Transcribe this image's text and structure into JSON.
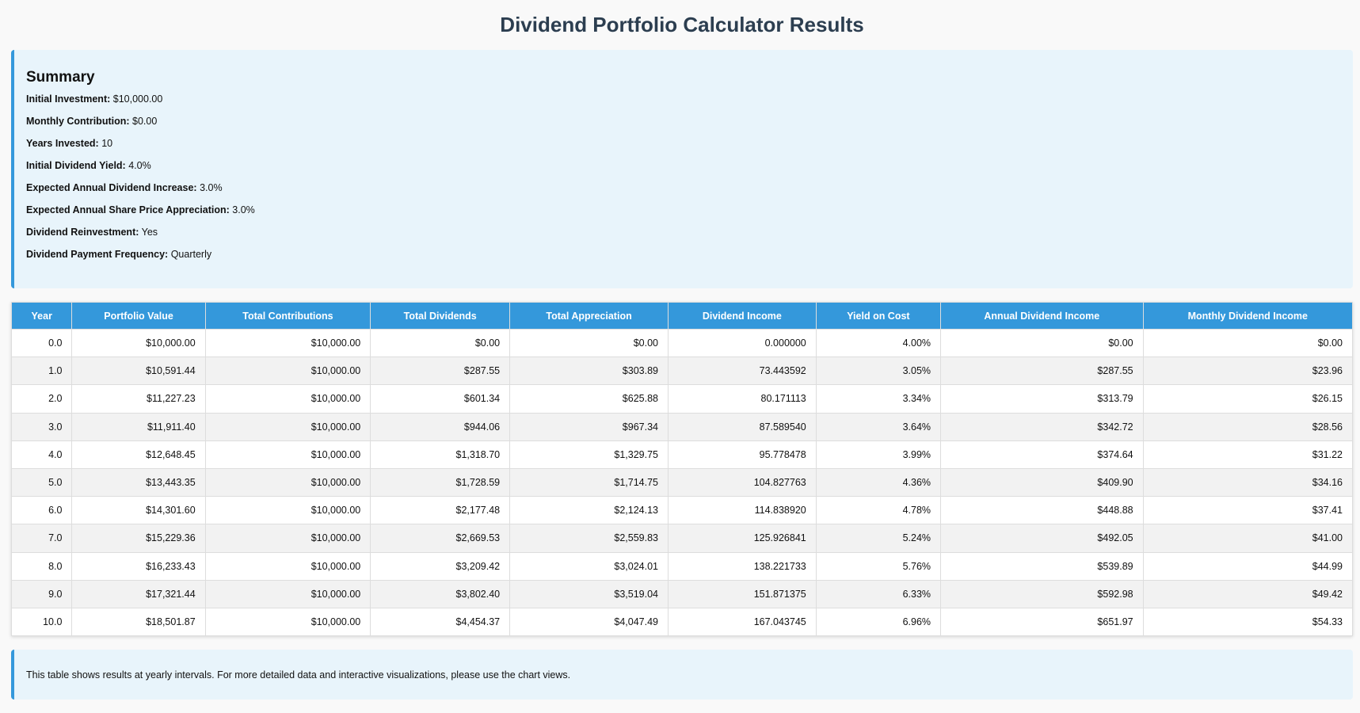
{
  "title": "Dividend Portfolio Calculator Results",
  "summary": {
    "heading": "Summary",
    "items": [
      {
        "label": "Initial Investment:",
        "value": "$10,000.00"
      },
      {
        "label": "Monthly Contribution:",
        "value": "$0.00"
      },
      {
        "label": "Years Invested:",
        "value": "10"
      },
      {
        "label": "Initial Dividend Yield:",
        "value": "4.0%"
      },
      {
        "label": "Expected Annual Dividend Increase:",
        "value": "3.0%"
      },
      {
        "label": "Expected Annual Share Price Appreciation:",
        "value": "3.0%"
      },
      {
        "label": "Dividend Reinvestment:",
        "value": "Yes"
      },
      {
        "label": "Dividend Payment Frequency:",
        "value": "Quarterly"
      }
    ]
  },
  "table": {
    "columns": [
      "Year",
      "Portfolio Value",
      "Total Contributions",
      "Total Dividends",
      "Total Appreciation",
      "Dividend Income",
      "Yield on Cost",
      "Annual Dividend Income",
      "Monthly Dividend Income"
    ],
    "rows": [
      [
        "0.0",
        "$10,000.00",
        "$10,000.00",
        "$0.00",
        "$0.00",
        "0.000000",
        "4.00%",
        "$0.00",
        "$0.00"
      ],
      [
        "1.0",
        "$10,591.44",
        "$10,000.00",
        "$287.55",
        "$303.89",
        "73.443592",
        "3.05%",
        "$287.55",
        "$23.96"
      ],
      [
        "2.0",
        "$11,227.23",
        "$10,000.00",
        "$601.34",
        "$625.88",
        "80.171113",
        "3.34%",
        "$313.79",
        "$26.15"
      ],
      [
        "3.0",
        "$11,911.40",
        "$10,000.00",
        "$944.06",
        "$967.34",
        "87.589540",
        "3.64%",
        "$342.72",
        "$28.56"
      ],
      [
        "4.0",
        "$12,648.45",
        "$10,000.00",
        "$1,318.70",
        "$1,329.75",
        "95.778478",
        "3.99%",
        "$374.64",
        "$31.22"
      ],
      [
        "5.0",
        "$13,443.35",
        "$10,000.00",
        "$1,728.59",
        "$1,714.75",
        "104.827763",
        "4.36%",
        "$409.90",
        "$34.16"
      ],
      [
        "6.0",
        "$14,301.60",
        "$10,000.00",
        "$2,177.48",
        "$2,124.13",
        "114.838920",
        "4.78%",
        "$448.88",
        "$37.41"
      ],
      [
        "7.0",
        "$15,229.36",
        "$10,000.00",
        "$2,669.53",
        "$2,559.83",
        "125.926841",
        "5.24%",
        "$492.05",
        "$41.00"
      ],
      [
        "8.0",
        "$16,233.43",
        "$10,000.00",
        "$3,209.42",
        "$3,024.01",
        "138.221733",
        "5.76%",
        "$539.89",
        "$44.99"
      ],
      [
        "9.0",
        "$17,321.44",
        "$10,000.00",
        "$3,802.40",
        "$3,519.04",
        "151.871375",
        "6.33%",
        "$592.98",
        "$49.42"
      ],
      [
        "10.0",
        "$18,501.87",
        "$10,000.00",
        "$4,454.37",
        "$4,047.49",
        "167.043745",
        "6.96%",
        "$651.97",
        "$54.33"
      ]
    ]
  },
  "note": "This table shows results at yearly intervals. For more detailed data and interactive visualizations, please use the chart views.",
  "colors": {
    "accent": "#3498db",
    "title": "#2c3e50",
    "panel": "#e8f4fb"
  }
}
